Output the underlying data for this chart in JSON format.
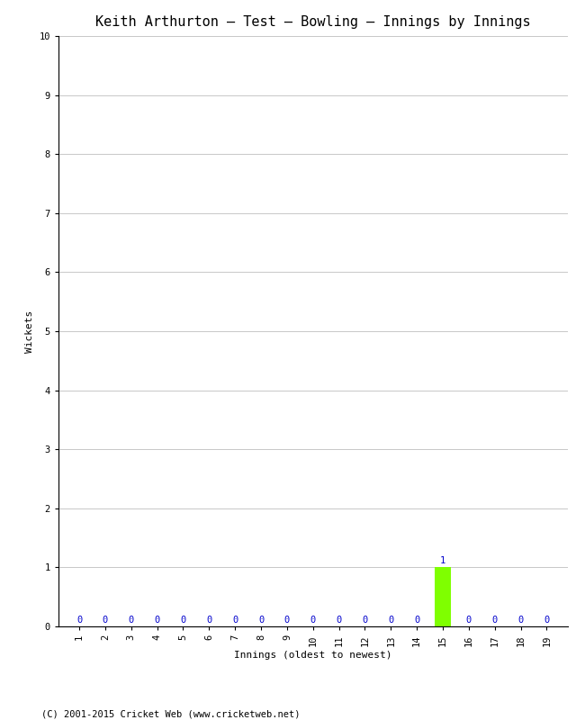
{
  "title": "Keith Arthurton – Test – Bowling – Innings by Innings",
  "xlabel": "Innings (oldest to newest)",
  "ylabel": "Wickets",
  "innings": [
    1,
    2,
    3,
    4,
    5,
    6,
    7,
    8,
    9,
    10,
    11,
    12,
    13,
    14,
    15,
    16,
    17,
    18,
    19
  ],
  "wickets": [
    0,
    0,
    0,
    0,
    0,
    0,
    0,
    0,
    0,
    0,
    0,
    0,
    0,
    0,
    1,
    0,
    0,
    0,
    0
  ],
  "bar_color": "#7fff00",
  "ylim": [
    0,
    10
  ],
  "yticks": [
    0,
    1,
    2,
    3,
    4,
    5,
    6,
    7,
    8,
    9,
    10
  ],
  "value_label_color": "#0000cc",
  "grid_color": "#c8c8c8",
  "background_color": "#ffffff",
  "footer": "(C) 2001-2015 Cricket Web (www.cricketweb.net)",
  "title_fontsize": 11,
  "axis_label_fontsize": 8,
  "tick_fontsize": 7.5,
  "value_label_fontsize": 7.5,
  "footer_fontsize": 7.5
}
